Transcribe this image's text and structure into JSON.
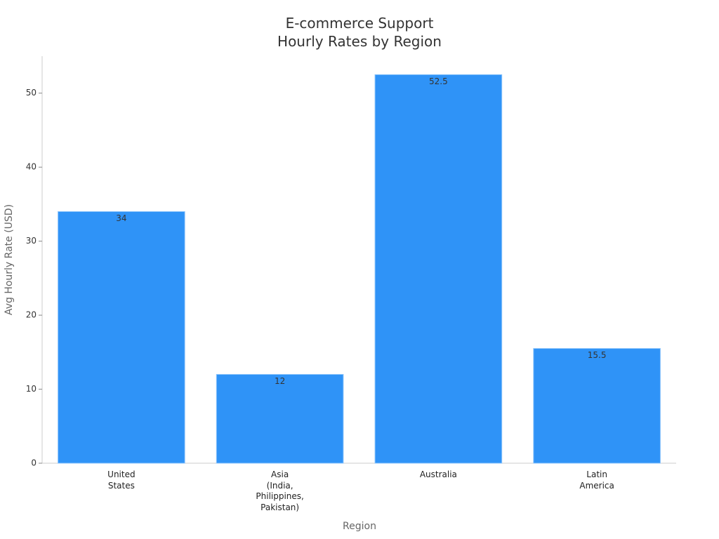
{
  "chart_data": {
    "type": "bar",
    "title": "E-commerce Support\nHourly Rates by Region",
    "x_label": "Region",
    "y_label": "Avg Hourly Rate (USD)",
    "categories": [
      "United\nStates",
      "Asia\n(India,\nPhilippines,\nPakistan)",
      "Australia",
      "Latin\nAmerica"
    ],
    "values": [
      34,
      12,
      52.5,
      15.5
    ],
    "color": "#2f93f7",
    "ylim": [
      0,
      55
    ],
    "yticks": [
      0,
      10,
      20,
      30,
      40,
      50
    ],
    "grid": false
  }
}
